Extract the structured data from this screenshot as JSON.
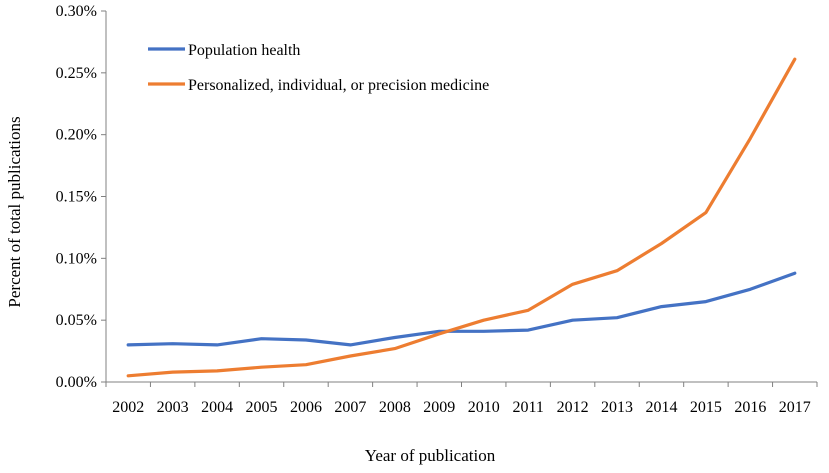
{
  "chart_data": {
    "type": "line",
    "title": "",
    "xlabel": "Year of publication",
    "ylabel": "Percent of total publications",
    "categories": [
      "2002",
      "2003",
      "2004",
      "2005",
      "2006",
      "2007",
      "2008",
      "2009",
      "2010",
      "2011",
      "2012",
      "2013",
      "2014",
      "2015",
      "2016",
      "2017"
    ],
    "ylim": [
      0,
      0.3
    ],
    "yticks": [
      0,
      0.05,
      0.1,
      0.15,
      0.2,
      0.25,
      0.3
    ],
    "ytick_labels": [
      "0.00%",
      "0.05%",
      "0.10%",
      "0.15%",
      "0.20%",
      "0.25%",
      "0.30%"
    ],
    "grid": false,
    "legend_position": "top-left",
    "series": [
      {
        "name": "Population health",
        "color": "#4472C4",
        "values": [
          0.03,
          0.031,
          0.03,
          0.035,
          0.034,
          0.03,
          0.036,
          0.041,
          0.041,
          0.042,
          0.05,
          0.052,
          0.061,
          0.065,
          0.075,
          0.088
        ]
      },
      {
        "name": "Personalized, individual, or precision medicine",
        "color": "#ED7D31",
        "values": [
          0.005,
          0.008,
          0.009,
          0.012,
          0.014,
          0.021,
          0.027,
          0.039,
          0.05,
          0.058,
          0.079,
          0.09,
          0.112,
          0.137,
          0.197,
          0.261
        ]
      }
    ]
  }
}
